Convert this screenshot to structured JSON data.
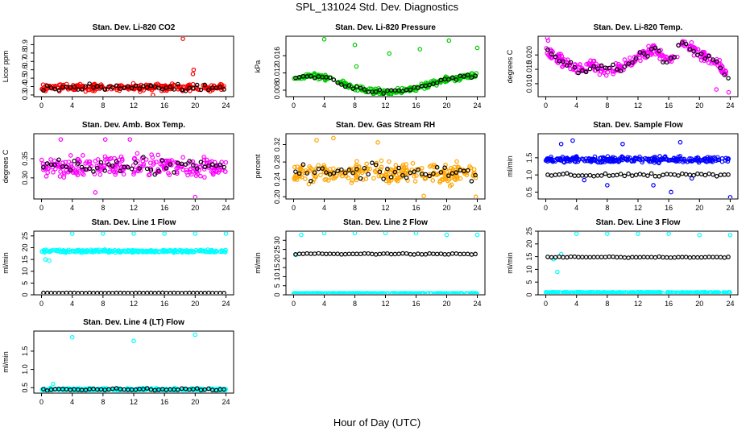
{
  "figure": {
    "title": "SPL_131024  Std. Dev. Diagnostics",
    "xlabel": "Hour of Day (UTC)"
  },
  "colors": {
    "black": "#000000",
    "red": "#ff0000",
    "green": "#00cc00",
    "magenta": "#ff00ff",
    "orange": "#ffa500",
    "blue": "#0000ff",
    "cyan": "#00ffff"
  },
  "chart_data": [
    {
      "type": "scatter",
      "title": "Stan. Dev. Li-820 CO2",
      "ylabel": "Licor ppm",
      "xlim": [
        -1,
        25
      ],
      "ylim": [
        0.28,
        1.0
      ],
      "xticks": [
        "0",
        "4",
        "8",
        "12",
        "16",
        "20",
        "24"
      ],
      "yticks": [
        "0.3",
        "0.4",
        "0.5",
        "0.6",
        "0.7",
        "0.8",
        "0.9"
      ],
      "series": [
        {
          "name": "main",
          "color": "red",
          "model": {
            "kind": "flat",
            "mean": 0.39,
            "spread": 0.06
          },
          "outliers": [
            [
              18.4,
              0.97
            ],
            [
              19.8,
              0.6
            ],
            [
              19.7,
              0.55
            ],
            [
              14.5,
              0.3
            ]
          ]
        },
        {
          "name": "hourly",
          "color": "black",
          "model": {
            "kind": "flat",
            "mean": 0.39,
            "spread": 0.05
          }
        }
      ]
    },
    {
      "type": "scatter",
      "title": "Stan. Dev. Li-820 Pressure",
      "ylabel": "kPa",
      "xlim": [
        -1,
        25
      ],
      "ylim": [
        0.0065,
        0.0205
      ],
      "xticks": [
        "0",
        "4",
        "8",
        "12",
        "16",
        "20",
        "24"
      ],
      "yticks": [
        "0.008",
        "0.012",
        "0.016"
      ],
      "series": [
        {
          "name": "main",
          "color": "green",
          "model": {
            "kind": "points",
            "pts": [
              [
                0,
                0.0105
              ],
              [
                2,
                0.0115
              ],
              [
                4,
                0.011
              ],
              [
                6,
                0.0098
              ],
              [
                8,
                0.0085
              ],
              [
                10,
                0.0078
              ],
              [
                12,
                0.0075
              ],
              [
                14,
                0.0078
              ],
              [
                16,
                0.0085
              ],
              [
                18,
                0.0095
              ],
              [
                20,
                0.0105
              ],
              [
                22,
                0.011
              ],
              [
                24,
                0.0115
              ]
            ],
            "spread": 0.0009
          },
          "outliers": [
            [
              4,
              0.0198
            ],
            [
              8,
              0.0185
            ],
            [
              12.5,
              0.0165
            ],
            [
              16.5,
              0.0175
            ],
            [
              20.3,
              0.0195
            ],
            [
              24,
              0.0178
            ],
            [
              8.2,
              0.0135
            ]
          ]
        },
        {
          "name": "hourly",
          "color": "black",
          "model": {
            "kind": "points",
            "pts": [
              [
                0,
                0.0105
              ],
              [
                2,
                0.0115
              ],
              [
                4,
                0.011
              ],
              [
                6,
                0.0098
              ],
              [
                8,
                0.0085
              ],
              [
                10,
                0.0078
              ],
              [
                12,
                0.0075
              ],
              [
                14,
                0.0078
              ],
              [
                16,
                0.0085
              ],
              [
                18,
                0.0095
              ],
              [
                20,
                0.0105
              ],
              [
                22,
                0.011
              ],
              [
                24,
                0.0115
              ]
            ],
            "spread": 0.0007
          }
        }
      ]
    },
    {
      "type": "scatter",
      "title": "Stan. Dev. Li-820 Temp.",
      "ylabel": "degrees C",
      "xlim": [
        -1,
        25
      ],
      "ylim": [
        0.0055,
        0.0265
      ],
      "xticks": [
        "0",
        "4",
        "8",
        "12",
        "16",
        "20",
        "24"
      ],
      "yticks": [
        "0.010",
        "0.015",
        "0.020"
      ],
      "series": [
        {
          "name": "main",
          "color": "magenta",
          "model": {
            "kind": "points",
            "pts": [
              [
                0,
                0.021
              ],
              [
                2,
                0.018
              ],
              [
                4,
                0.015
              ],
              [
                6,
                0.016
              ],
              [
                8,
                0.014
              ],
              [
                10,
                0.016
              ],
              [
                12,
                0.019
              ],
              [
                14,
                0.022
              ],
              [
                16,
                0.018
              ],
              [
                17,
                0.021
              ],
              [
                18,
                0.024
              ],
              [
                20,
                0.02
              ],
              [
                22,
                0.018
              ],
              [
                24,
                0.012
              ]
            ],
            "spread": 0.003
          },
          "outliers": [
            [
              0.2,
              0.026
            ],
            [
              0.3,
              0.025
            ],
            [
              23.8,
              0.007
            ],
            [
              22.2,
              0.008
            ]
          ]
        },
        {
          "name": "hourly",
          "color": "black",
          "model": {
            "kind": "points",
            "pts": [
              [
                0,
                0.021
              ],
              [
                2,
                0.018
              ],
              [
                4,
                0.015
              ],
              [
                6,
                0.016
              ],
              [
                8,
                0.014
              ],
              [
                10,
                0.016
              ],
              [
                12,
                0.019
              ],
              [
                14,
                0.022
              ],
              [
                16,
                0.018
              ],
              [
                17,
                0.021
              ],
              [
                18,
                0.024
              ],
              [
                20,
                0.02
              ],
              [
                22,
                0.018
              ],
              [
                24,
                0.012
              ]
            ],
            "spread": 0.0025
          }
        }
      ]
    },
    {
      "type": "scatter",
      "title": "Stan. Dev. Amb. Box Temp.",
      "ylabel": "degrees C",
      "xlim": [
        -1,
        25
      ],
      "ylim": [
        0.245,
        0.415
      ],
      "xticks": [
        "0",
        "4",
        "8",
        "12",
        "16",
        "20",
        "24"
      ],
      "yticks": [
        "0.30",
        "0.35"
      ],
      "series": [
        {
          "name": "main",
          "color": "magenta",
          "model": {
            "kind": "flat",
            "mean": 0.33,
            "spread": 0.04
          },
          "outliers": [
            [
              2.5,
              0.4
            ],
            [
              8.3,
              0.4
            ],
            [
              11.5,
              0.4
            ],
            [
              20,
              0.25
            ],
            [
              7,
              0.262
            ]
          ]
        },
        {
          "name": "hourly",
          "color": "black",
          "model": {
            "kind": "flat",
            "mean": 0.33,
            "spread": 0.035
          }
        }
      ]
    },
    {
      "type": "scatter",
      "title": "Stan. Dev. Gas Stream RH",
      "ylabel": "percent",
      "xlim": [
        -1,
        25
      ],
      "ylim": [
        0.195,
        0.345
      ],
      "xticks": [
        "0",
        "4",
        "8",
        "12",
        "16",
        "20",
        "24"
      ],
      "yticks": [
        "0.20",
        "0.24",
        "0.28",
        "0.32"
      ],
      "series": [
        {
          "name": "main",
          "color": "orange",
          "model": {
            "kind": "flat",
            "mean": 0.255,
            "spread": 0.035
          },
          "outliers": [
            [
              5.2,
              0.335
            ],
            [
              11,
              0.325
            ],
            [
              3,
              0.33
            ],
            [
              17,
              0.202
            ],
            [
              23.8,
              0.2
            ]
          ]
        },
        {
          "name": "hourly",
          "color": "black",
          "model": {
            "kind": "flat",
            "mean": 0.255,
            "spread": 0.025
          }
        }
      ]
    },
    {
      "type": "scatter",
      "title": "Stan. Dev. Sample Flow",
      "ylabel": "ml/min",
      "xlim": [
        -1,
        25
      ],
      "ylim": [
        0.3,
        2.2
      ],
      "xticks": [
        "0",
        "4",
        "8",
        "12",
        "16",
        "20",
        "24"
      ],
      "yticks": [
        "0.5",
        "1.0",
        "1.5"
      ],
      "series": [
        {
          "name": "main",
          "color": "blue",
          "model": {
            "kind": "flat",
            "mean": 1.45,
            "spread": 0.12
          },
          "outliers": [
            [
              3.5,
              2.0
            ],
            [
              5,
              0.85
            ],
            [
              8,
              0.7
            ],
            [
              14,
              0.7
            ],
            [
              16.3,
              0.5
            ],
            [
              17.5,
              1.95
            ],
            [
              19,
              0.9
            ],
            [
              24,
              0.35
            ],
            [
              2,
              1.9
            ],
            [
              10,
              1.9
            ]
          ]
        },
        {
          "name": "hourly",
          "color": "black",
          "model": {
            "kind": "flat",
            "mean": 1.0,
            "spread": 0.08
          }
        }
      ]
    },
    {
      "type": "scatter",
      "title": "Stan. Dev. Line 1 Flow",
      "ylabel": "ml/min",
      "xlim": [
        -1,
        25
      ],
      "ylim": [
        0,
        27
      ],
      "xticks": [
        "0",
        "4",
        "8",
        "12",
        "16",
        "20",
        "24"
      ],
      "yticks": [
        "0",
        "5",
        "10",
        "15",
        "20",
        "25"
      ],
      "series": [
        {
          "name": "main",
          "color": "cyan",
          "model": {
            "kind": "flat",
            "mean": 18.5,
            "spread": 0.8
          },
          "outliers": [
            [
              4,
              26
            ],
            [
              8,
              26
            ],
            [
              12,
              26
            ],
            [
              16,
              26
            ],
            [
              20,
              26
            ],
            [
              24,
              26
            ],
            [
              1,
              14.5
            ],
            [
              0.5,
              15
            ]
          ]
        },
        {
          "name": "hourly",
          "color": "black",
          "model": {
            "kind": "flat",
            "mean": 0.8,
            "spread": 0.1
          }
        }
      ]
    },
    {
      "type": "scatter",
      "title": "Stan. Dev. Line 2 Flow",
      "ylabel": "ml/min",
      "xlim": [
        -1,
        25
      ],
      "ylim": [
        0,
        35
      ],
      "xticks": [
        "0",
        "4",
        "8",
        "12",
        "16",
        "20",
        "24"
      ],
      "yticks": [
        "0",
        "5",
        "10",
        "15",
        "20",
        "25",
        "30"
      ],
      "series": [
        {
          "name": "main",
          "color": "cyan",
          "model": {
            "kind": "flat",
            "mean": 0.8,
            "spread": 0.2
          },
          "outliers": [
            [
              0.3,
              22
            ],
            [
              1,
              33
            ],
            [
              4,
              34
            ],
            [
              8,
              34
            ],
            [
              12,
              34
            ],
            [
              16,
              34
            ],
            [
              20,
              33
            ],
            [
              24,
              33
            ]
          ]
        },
        {
          "name": "hourly",
          "color": "black",
          "model": {
            "kind": "flat",
            "mean": 22.5,
            "spread": 0.5
          }
        }
      ]
    },
    {
      "type": "scatter",
      "title": "Stan. Dev. Line 3 Flow",
      "ylabel": "ml/min",
      "xlim": [
        -1,
        25
      ],
      "ylim": [
        0,
        25
      ],
      "xticks": [
        "0",
        "4",
        "8",
        "12",
        "16",
        "20",
        "24"
      ],
      "yticks": [
        "0",
        "5",
        "10",
        "15",
        "20",
        "25"
      ],
      "series": [
        {
          "name": "main",
          "color": "cyan",
          "model": {
            "kind": "flat",
            "mean": 0.9,
            "spread": 0.2
          },
          "outliers": [
            [
              1.5,
              9
            ],
            [
              2,
              16
            ],
            [
              4,
              24
            ],
            [
              8,
              24
            ],
            [
              12,
              24
            ],
            [
              16,
              24
            ],
            [
              20,
              23.5
            ],
            [
              24,
              23.5
            ],
            [
              1,
              14
            ]
          ]
        },
        {
          "name": "hourly",
          "color": "black",
          "model": {
            "kind": "flat",
            "mean": 14.8,
            "spread": 0.3
          }
        }
      ]
    },
    {
      "type": "scatter",
      "title": "Stan. Dev. Line 4 (LT) Flow",
      "ylabel": "ml/min",
      "xlim": [
        -1,
        25
      ],
      "ylim": [
        0.35,
        2.05
      ],
      "xticks": [
        "0",
        "4",
        "8",
        "12",
        "16",
        "20",
        "24"
      ],
      "yticks": [
        "0.5",
        "1.0",
        "1.5"
      ],
      "series": [
        {
          "name": "main",
          "color": "cyan",
          "model": {
            "kind": "flat",
            "mean": 0.45,
            "spread": 0.05
          },
          "outliers": [
            [
              1.5,
              0.6
            ],
            [
              4,
              1.88
            ],
            [
              12,
              1.78
            ],
            [
              20,
              1.95
            ]
          ]
        },
        {
          "name": "hourly",
          "color": "black",
          "model": {
            "kind": "flat",
            "mean": 0.45,
            "spread": 0.04
          }
        }
      ]
    }
  ]
}
